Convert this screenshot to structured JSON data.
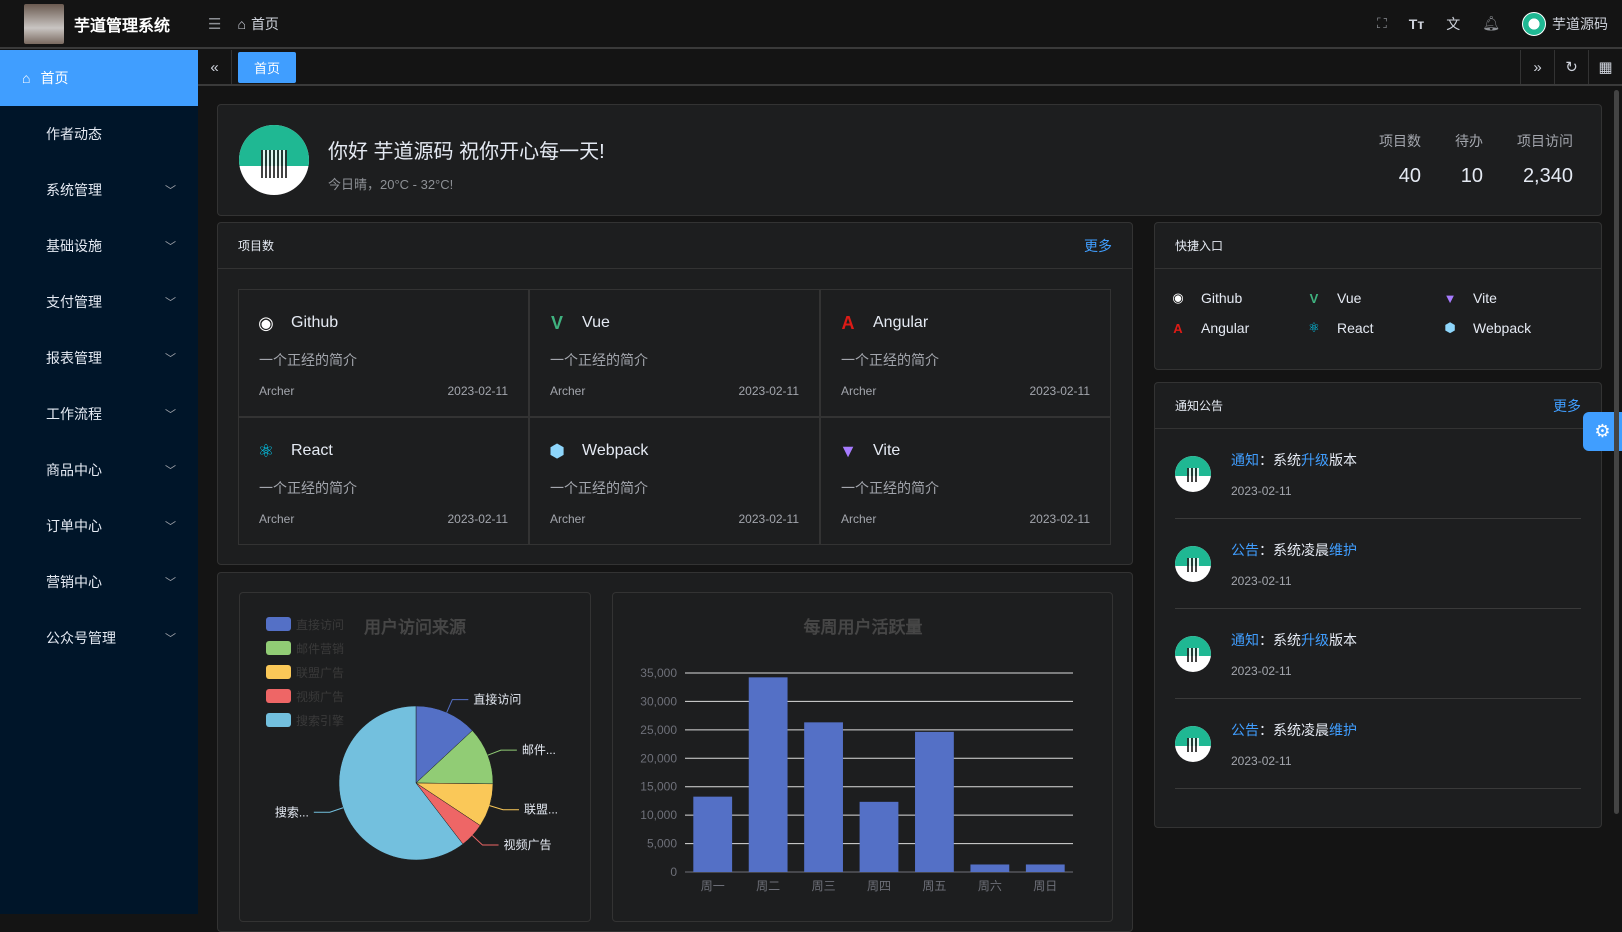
{
  "header": {
    "app_title": "芋道管理系统",
    "breadcrumb": "首页",
    "username": "芋道源码"
  },
  "sidebar": {
    "items": [
      {
        "label": "首页",
        "active": true,
        "expandable": false
      },
      {
        "label": "作者动态",
        "expandable": false
      },
      {
        "label": "系统管理",
        "expandable": true
      },
      {
        "label": "基础设施",
        "expandable": true
      },
      {
        "label": "支付管理",
        "expandable": true
      },
      {
        "label": "报表管理",
        "expandable": true
      },
      {
        "label": "工作流程",
        "expandable": true
      },
      {
        "label": "商品中心",
        "expandable": true
      },
      {
        "label": "订单中心",
        "expandable": true
      },
      {
        "label": "营销中心",
        "expandable": true
      },
      {
        "label": "公众号管理",
        "expandable": true
      }
    ]
  },
  "tabs": [
    {
      "label": "首页",
      "active": true
    }
  ],
  "welcome": {
    "greeting": "你好 芋道源码 祝你开心每一天!",
    "weather": "今日晴，20°C - 32°C!",
    "stats": [
      {
        "label": "项目数",
        "value": "40"
      },
      {
        "label": "待办",
        "value": "10"
      },
      {
        "label": "项目访问",
        "value": "2,340"
      }
    ]
  },
  "projects": {
    "title": "项目数",
    "more": "更多",
    "items": [
      {
        "name": "Github",
        "icon": "github-icon",
        "color": "#ffffff",
        "desc": "一个正经的简介",
        "author": "Archer",
        "date": "2023-02-11"
      },
      {
        "name": "Vue",
        "icon": "vue-icon",
        "color": "#3fb27f",
        "desc": "一个正经的简介",
        "author": "Archer",
        "date": "2023-02-11"
      },
      {
        "name": "Angular",
        "icon": "angular-icon",
        "color": "#dd1b16",
        "desc": "一个正经的简介",
        "author": "Archer",
        "date": "2023-02-11"
      },
      {
        "name": "React",
        "icon": "react-icon",
        "color": "#00d8ff",
        "desc": "一个正经的简介",
        "author": "Archer",
        "date": "2023-02-11"
      },
      {
        "name": "Webpack",
        "icon": "webpack-icon",
        "color": "#8ed6fb",
        "desc": "一个正经的简介",
        "author": "Archer",
        "date": "2023-02-11"
      },
      {
        "name": "Vite",
        "icon": "vite-icon",
        "color": "#a77bff",
        "desc": "一个正经的简介",
        "author": "Archer",
        "date": "2023-02-11"
      }
    ]
  },
  "shortcuts": {
    "title": "快捷入口",
    "items": [
      {
        "name": "Github",
        "icon": "github-icon",
        "color": "#ffffff"
      },
      {
        "name": "Vue",
        "icon": "vue-icon",
        "color": "#3fb27f"
      },
      {
        "name": "Vite",
        "icon": "vite-icon",
        "color": "#a77bff"
      },
      {
        "name": "Angular",
        "icon": "angular-icon",
        "color": "#dd1b16"
      },
      {
        "name": "React",
        "icon": "react-icon",
        "color": "#00d8ff"
      },
      {
        "name": "Webpack",
        "icon": "webpack-icon",
        "color": "#8ed6fb"
      }
    ]
  },
  "notices": {
    "title": "通知公告",
    "more": "更多",
    "items": [
      {
        "type": "通知",
        "sep": "：",
        "text": "系统",
        "highlight": "升级",
        "suffix": "版本",
        "date": "2023-02-11"
      },
      {
        "type": "公告",
        "sep": "：",
        "text": "系统凌晨",
        "highlight": "维护",
        "suffix": "",
        "date": "2023-02-11"
      },
      {
        "type": "通知",
        "sep": "：",
        "text": "系统",
        "highlight": "升级",
        "suffix": "版本",
        "date": "2023-02-11"
      },
      {
        "type": "公告",
        "sep": "：",
        "text": "系统凌晨",
        "highlight": "维护",
        "suffix": "",
        "date": "2023-02-11"
      }
    ]
  },
  "accent": "#409eff",
  "chart_data": [
    {
      "type": "pie",
      "title": "用户访问来源",
      "legend": "top-left",
      "categories": [
        "直接访问",
        "邮件营销",
        "联盟广告",
        "视频广告",
        "搜索引擎"
      ],
      "values": [
        335,
        310,
        234,
        135,
        1548
      ],
      "labels": [
        "直接访问",
        "邮件...",
        "联盟...",
        "视频广告",
        "搜索..."
      ],
      "colors": [
        "#5470c6",
        "#91cc75",
        "#fac858",
        "#ee6666",
        "#73c0de"
      ]
    },
    {
      "type": "bar",
      "title": "每周用户活跃量",
      "categories": [
        "周一",
        "周二",
        "周三",
        "周四",
        "周五",
        "周六",
        "周日"
      ],
      "values": [
        13253,
        34235,
        26321,
        12340,
        24643,
        1322,
        1324
      ],
      "ylim": [
        0,
        35000
      ],
      "yticks": [
        "0",
        "5,000",
        "10,000",
        "15,000",
        "20,000",
        "25,000",
        "30,000",
        "35,000"
      ],
      "grid": true,
      "color": "#5470c6"
    }
  ]
}
